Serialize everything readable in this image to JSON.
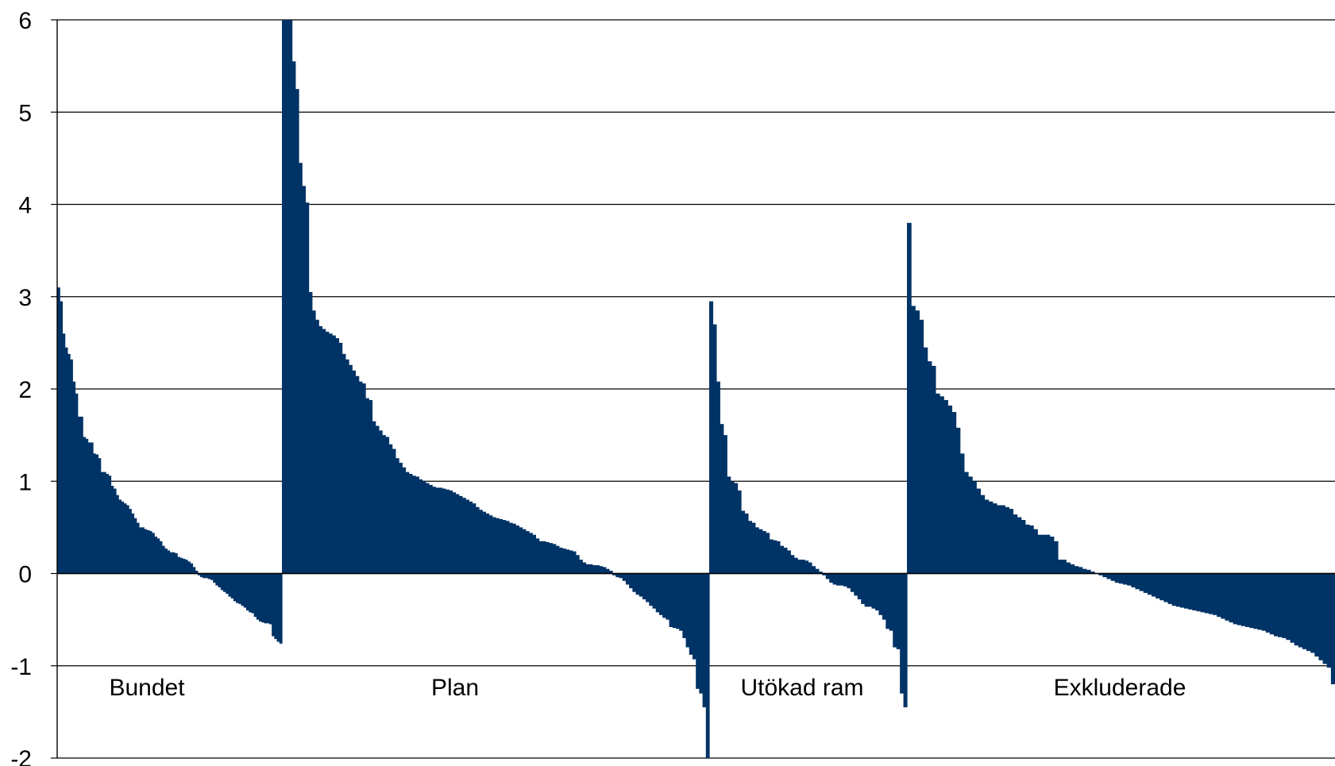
{
  "chart_data": {
    "type": "bar",
    "ylim": [
      -2,
      6
    ],
    "y_ticks": [
      6,
      5,
      4,
      3,
      2,
      1,
      0,
      -1,
      -2
    ],
    "grid": true,
    "bar_color": "#003366",
    "groups": [
      {
        "label": "Bundet",
        "values": [
          3.1,
          2.95,
          2.6,
          2.45,
          2.38,
          2.32,
          2.08,
          1.95,
          1.7,
          1.7,
          1.48,
          1.46,
          1.42,
          1.42,
          1.3,
          1.29,
          1.25,
          1.1,
          1.1,
          1.08,
          1.06,
          0.95,
          0.92,
          0.85,
          0.8,
          0.78,
          0.76,
          0.74,
          0.7,
          0.65,
          0.6,
          0.55,
          0.5,
          0.5,
          0.48,
          0.47,
          0.46,
          0.44,
          0.4,
          0.38,
          0.35,
          0.3,
          0.27,
          0.25,
          0.23,
          0.23,
          0.22,
          0.18,
          0.17,
          0.16,
          0.15,
          0.13,
          0.11,
          0.07,
          0.03,
          -0.02,
          -0.04,
          -0.05,
          -0.05,
          -0.06,
          -0.07,
          -0.1,
          -0.13,
          -0.15,
          -0.18,
          -0.2,
          -0.22,
          -0.25,
          -0.27,
          -0.3,
          -0.32,
          -0.33,
          -0.35,
          -0.37,
          -0.4,
          -0.42,
          -0.43,
          -0.47,
          -0.5,
          -0.52,
          -0.53,
          -0.54,
          -0.54,
          -0.55,
          -0.68,
          -0.71,
          -0.74,
          -0.76
        ]
      },
      {
        "label": "Plan",
        "values": [
          6.0,
          6.0,
          6.0,
          5.55,
          5.25,
          4.45,
          4.2,
          4.02,
          3.05,
          2.85,
          2.75,
          2.68,
          2.65,
          2.62,
          2.6,
          2.58,
          2.55,
          2.5,
          2.38,
          2.32,
          2.26,
          2.2,
          2.14,
          2.08,
          2.06,
          1.9,
          1.88,
          1.65,
          1.6,
          1.55,
          1.5,
          1.48,
          1.4,
          1.35,
          1.25,
          1.2,
          1.15,
          1.1,
          1.08,
          1.06,
          1.05,
          1.02,
          1.0,
          0.98,
          0.96,
          0.94,
          0.93,
          0.93,
          0.92,
          0.91,
          0.9,
          0.88,
          0.86,
          0.84,
          0.82,
          0.8,
          0.78,
          0.76,
          0.72,
          0.69,
          0.67,
          0.65,
          0.63,
          0.61,
          0.6,
          0.59,
          0.58,
          0.57,
          0.55,
          0.54,
          0.52,
          0.5,
          0.48,
          0.46,
          0.44,
          0.42,
          0.38,
          0.35,
          0.35,
          0.34,
          0.33,
          0.32,
          0.3,
          0.28,
          0.27,
          0.26,
          0.25,
          0.24,
          0.2,
          0.15,
          0.12,
          0.1,
          0.1,
          0.09,
          0.09,
          0.08,
          0.07,
          0.05,
          0.03,
          -0.02,
          -0.04,
          -0.05,
          -0.08,
          -0.12,
          -0.16,
          -0.2,
          -0.23,
          -0.25,
          -0.28,
          -0.31,
          -0.35,
          -0.38,
          -0.42,
          -0.45,
          -0.48,
          -0.5,
          -0.58,
          -0.59,
          -0.6,
          -0.62,
          -0.7,
          -0.8,
          -0.88,
          -0.93,
          -1.25,
          -1.3,
          -1.45,
          -2.0
        ]
      },
      {
        "label": "Utökad ram",
        "values": [
          2.95,
          2.7,
          2.08,
          1.62,
          1.5,
          1.05,
          1.0,
          0.98,
          0.9,
          0.68,
          0.65,
          0.57,
          0.55,
          0.5,
          0.48,
          0.46,
          0.44,
          0.37,
          0.36,
          0.35,
          0.3,
          0.28,
          0.25,
          0.2,
          0.17,
          0.15,
          0.15,
          0.14,
          0.12,
          0.08,
          0.05,
          0.02,
          -0.02,
          -0.06,
          -0.1,
          -0.12,
          -0.13,
          -0.13,
          -0.14,
          -0.16,
          -0.2,
          -0.24,
          -0.28,
          -0.33,
          -0.36,
          -0.36,
          -0.38,
          -0.4,
          -0.45,
          -0.5,
          -0.6,
          -0.62,
          -0.8,
          -0.82,
          -1.3,
          -1.45
        ]
      },
      {
        "label": "Exkluderade",
        "values": [
          3.8,
          2.9,
          2.85,
          2.75,
          2.45,
          2.3,
          2.25,
          1.95,
          1.92,
          1.88,
          1.82,
          1.75,
          1.58,
          1.3,
          1.1,
          1.05,
          1.0,
          0.92,
          0.85,
          0.8,
          0.78,
          0.76,
          0.74,
          0.74,
          0.72,
          0.7,
          0.64,
          0.61,
          0.58,
          0.53,
          0.52,
          0.48,
          0.42,
          0.42,
          0.42,
          0.4,
          0.35,
          0.15,
          0.15,
          0.12,
          0.1,
          0.08,
          0.07,
          0.05,
          0.04,
          0.02,
          0.0,
          -0.02,
          -0.04,
          -0.06,
          -0.08,
          -0.1,
          -0.11,
          -0.12,
          -0.13,
          -0.15,
          -0.17,
          -0.19,
          -0.21,
          -0.23,
          -0.25,
          -0.27,
          -0.29,
          -0.31,
          -0.33,
          -0.35,
          -0.36,
          -0.37,
          -0.38,
          -0.39,
          -0.4,
          -0.41,
          -0.42,
          -0.43,
          -0.44,
          -0.45,
          -0.47,
          -0.49,
          -0.51,
          -0.53,
          -0.55,
          -0.56,
          -0.57,
          -0.58,
          -0.59,
          -0.6,
          -0.61,
          -0.62,
          -0.64,
          -0.66,
          -0.68,
          -0.69,
          -0.7,
          -0.72,
          -0.75,
          -0.78,
          -0.8,
          -0.82,
          -0.84,
          -0.86,
          -0.9,
          -0.94,
          -0.98,
          -1.02,
          -1.2
        ]
      }
    ]
  }
}
